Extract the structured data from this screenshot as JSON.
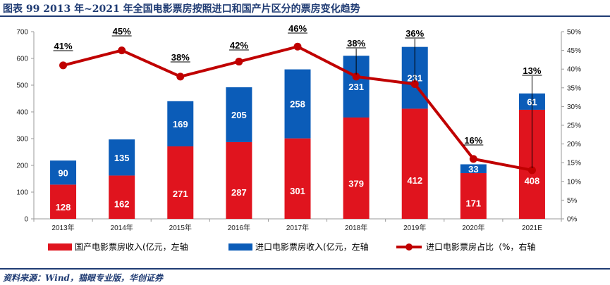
{
  "title": "图表 99   2013 年~2021 年全国电影票房按照进口和国产片区分的票房变化趋势",
  "source": "资料来源：Wind，猫眼专业版，华创证券",
  "colors": {
    "domestic": "#e0141e",
    "imported": "#0b5cb8",
    "share": "#c00000"
  },
  "chart_data": {
    "type": "bar",
    "stacked": true,
    "categories": [
      "2013年",
      "2014年",
      "2015年",
      "2016年",
      "2017年",
      "2018年",
      "2019年",
      "2020年",
      "2021E"
    ],
    "series": [
      {
        "name": "国产电影票房收入(亿元，左轴",
        "type": "bar",
        "axis": "left",
        "values": [
          128,
          162,
          271,
          287,
          301,
          379,
          412,
          171,
          408
        ]
      },
      {
        "name": "进口电影票房收入(亿元，左轴",
        "type": "bar",
        "axis": "left",
        "values": [
          90,
          135,
          169,
          205,
          258,
          231,
          231,
          33,
          61
        ]
      },
      {
        "name": "进口电影票房占比（%，右轴",
        "type": "line",
        "axis": "right",
        "values": [
          41,
          45,
          38,
          42,
          46,
          38,
          36,
          16,
          13
        ]
      }
    ],
    "y_left": {
      "range": [
        0,
        700
      ],
      "ticks": [
        "0",
        "100",
        "200",
        "300",
        "400",
        "500",
        "600",
        "700"
      ]
    },
    "y_right": {
      "range": [
        0,
        50
      ],
      "ticks": [
        "0%",
        "5%",
        "10%",
        "15%",
        "20%",
        "25%",
        "30%",
        "35%",
        "40%",
        "45%",
        "50%"
      ]
    },
    "pct_labels": [
      "41%",
      "45%",
      "38%",
      "42%",
      "46%",
      "38%",
      "36%",
      "16%",
      "13%"
    ],
    "legend_position": "bottom"
  }
}
